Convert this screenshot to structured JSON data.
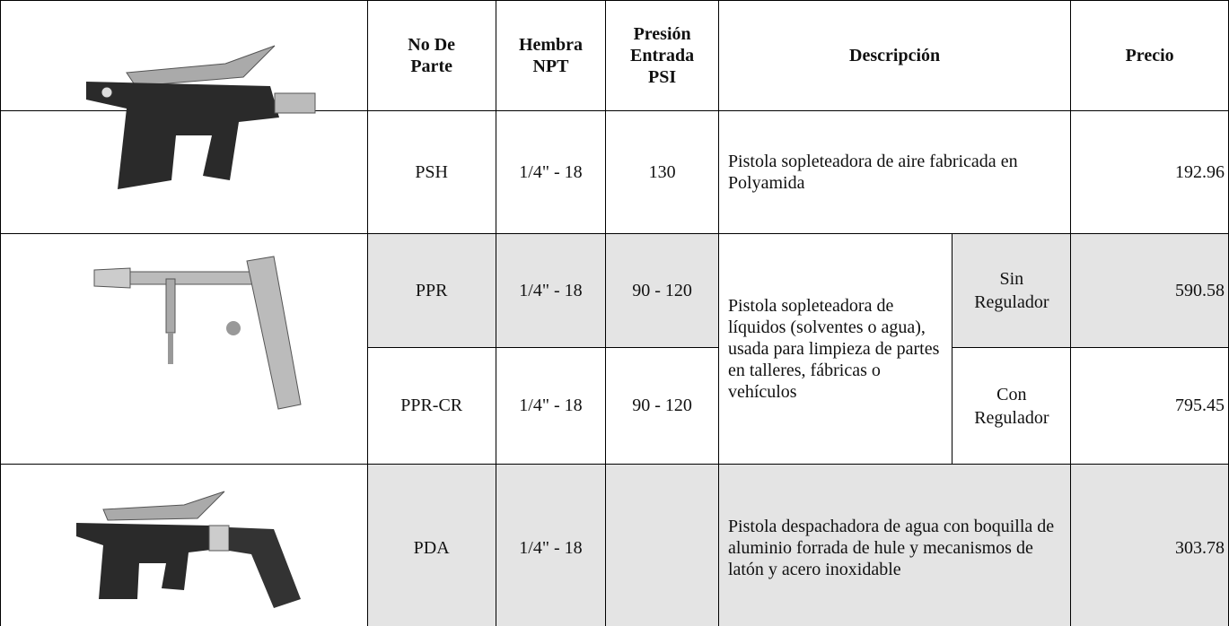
{
  "table": {
    "headers": [
      "No De Parte",
      "Hembra NPT",
      "Presión Entrada PSI",
      "Descripción",
      "Precio"
    ],
    "rows": [
      {
        "part": "PSH",
        "npt": "1/4\" - 18",
        "psi": "130",
        "description": "Pistola sopleteadora de aire fabricada en Polyamida",
        "price": 192.96
      },
      {
        "part": "PPR",
        "npt": "1/4\" - 18",
        "psi": "90 - 120",
        "description": "Pistola sopleteadora de líquidos (solventes o agua), usada para limpieza de partes en talleres, fábricas o vehículos",
        "variant": "Sin Regulador",
        "price": 590.58
      },
      {
        "part": "PPR-CR",
        "npt": "1/4\" - 18",
        "psi": "90 - 120",
        "variant": "Con Regulador",
        "price": 795.45
      },
      {
        "part": "PDA",
        "npt": "1/4\" - 18",
        "description": "Pistola despachadora de agua con boquilla de aluminio forrada de hule y mecanismos de latón y acero inoxidable",
        "price": 303.78
      }
    ]
  }
}
